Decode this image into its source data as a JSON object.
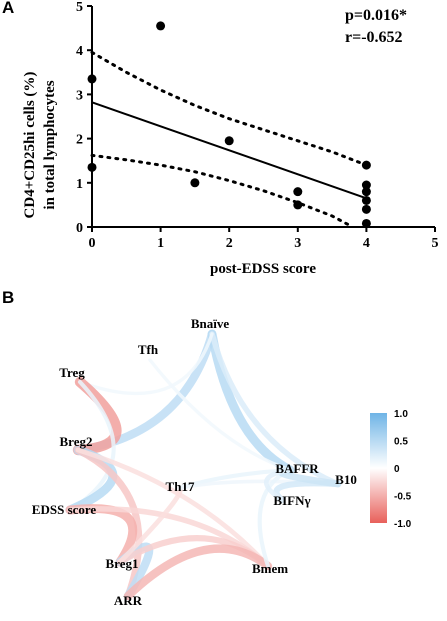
{
  "panel_a": {
    "letter": "A"
  },
  "panel_b": {
    "letter": "B"
  },
  "chart_data": [
    {
      "type": "scatter",
      "xlabel": "post-EDSS score",
      "ylabel_line1": "CD4+CD25hi cells (%)",
      "ylabel_line2": "in total lymphocytes",
      "xlim": [
        0,
        5
      ],
      "ylim": [
        0,
        5
      ],
      "x_ticks": [
        "0",
        "1",
        "2",
        "3",
        "4",
        "5"
      ],
      "y_ticks": [
        "0",
        "1",
        "2",
        "3",
        "4",
        "5"
      ],
      "points": [
        {
          "x": 0,
          "y": 3.35
        },
        {
          "x": 0,
          "y": 1.35
        },
        {
          "x": 1,
          "y": 4.55
        },
        {
          "x": 1.5,
          "y": 1.0
        },
        {
          "x": 2,
          "y": 1.95
        },
        {
          "x": 3,
          "y": 0.8
        },
        {
          "x": 3,
          "y": 0.5
        },
        {
          "x": 4,
          "y": 1.4
        },
        {
          "x": 4,
          "y": 0.95
        },
        {
          "x": 4,
          "y": 0.8
        },
        {
          "x": 4,
          "y": 0.6
        },
        {
          "x": 4,
          "y": 0.4
        },
        {
          "x": 4,
          "y": 0.08
        }
      ],
      "regression": {
        "x0": 0,
        "y0": 2.82,
        "x1": 4,
        "y1": 0.65
      },
      "ci_upper": [
        [
          0,
          3.95
        ],
        [
          0.5,
          3.5
        ],
        [
          1,
          3.1
        ],
        [
          1.5,
          2.75
        ],
        [
          2,
          2.45
        ],
        [
          2.5,
          2.2
        ],
        [
          3,
          1.95
        ],
        [
          3.5,
          1.7
        ],
        [
          4,
          1.4
        ]
      ],
      "ci_lower": [
        [
          0,
          1.62
        ],
        [
          0.5,
          1.52
        ],
        [
          1,
          1.4
        ],
        [
          1.5,
          1.25
        ],
        [
          2,
          1.05
        ],
        [
          2.5,
          0.82
        ],
        [
          3,
          0.55
        ],
        [
          3.5,
          0.25
        ],
        [
          3.8,
          0.0
        ]
      ],
      "annotations": [
        "p=0.016*",
        "r=-0.652"
      ]
    },
    {
      "type": "network",
      "nodes": [
        {
          "id": "Bnaive",
          "label": "Bnaïve"
        },
        {
          "id": "Tfh",
          "label": "Tfh"
        },
        {
          "id": "Treg",
          "label": "Treg"
        },
        {
          "id": "Breg2",
          "label": "Breg2"
        },
        {
          "id": "EDSS",
          "label": "EDSS score"
        },
        {
          "id": "Breg1",
          "label": "Breg1"
        },
        {
          "id": "ARR",
          "label": "ARR"
        },
        {
          "id": "Bmem",
          "label": "Bmem"
        },
        {
          "id": "Th17",
          "label": "Th17"
        },
        {
          "id": "BIFNg",
          "label": "BIFNγ"
        },
        {
          "id": "BAFFR",
          "label": "BAFFR"
        },
        {
          "id": "B10",
          "label": "B10"
        }
      ],
      "edges": [
        {
          "a": "Bnaive",
          "b": "Breg2",
          "r": 0.45
        },
        {
          "a": "Bnaive",
          "b": "BAFFR",
          "r": 0.5
        },
        {
          "a": "Bnaive",
          "b": "B10",
          "r": 0.25
        },
        {
          "a": "Bnaive",
          "b": "Treg",
          "r": 0.1
        },
        {
          "a": "Tfh",
          "b": "BAFFR",
          "r": 0.1
        },
        {
          "a": "Treg",
          "b": "Breg2",
          "r": -0.6
        },
        {
          "a": "Treg",
          "b": "EDSS",
          "r": 0.15
        },
        {
          "a": "Breg2",
          "b": "EDSS",
          "r": 0.5
        },
        {
          "a": "Breg2",
          "b": "ARR",
          "r": -0.35
        },
        {
          "a": "Breg2",
          "b": "Bmem",
          "r": -0.2
        },
        {
          "a": "EDSS",
          "b": "Breg1",
          "r": -0.5
        },
        {
          "a": "EDSS",
          "b": "Bmem",
          "r": -0.25
        },
        {
          "a": "Breg1",
          "b": "ARR",
          "r": 0.45
        },
        {
          "a": "Breg1",
          "b": "Bmem",
          "r": -0.3
        },
        {
          "a": "Breg1",
          "b": "Th17",
          "r": -0.2
        },
        {
          "a": "ARR",
          "b": "Bmem",
          "r": -0.45
        },
        {
          "a": "Th17",
          "b": "BAFFR",
          "r": 0.15
        },
        {
          "a": "Th17",
          "b": "B10",
          "r": 0.12
        },
        {
          "a": "Bmem",
          "b": "BAFFR",
          "r": 0.15
        },
        {
          "a": "BIFNg",
          "b": "B10",
          "r": 0.3
        },
        {
          "a": "BAFFR",
          "b": "B10",
          "r": 0.35
        },
        {
          "a": "BAFFR",
          "b": "BIFNg",
          "r": 0.2
        }
      ],
      "colorbar": {
        "min": -1.0,
        "max": 1.0,
        "ticks": [
          "1.0",
          "0.5",
          "0",
          "-0.5",
          "-1.0"
        ],
        "color_positive": "#6fb4e6",
        "color_mid": "#ffffff",
        "color_negative": "#e8605a"
      }
    }
  ]
}
